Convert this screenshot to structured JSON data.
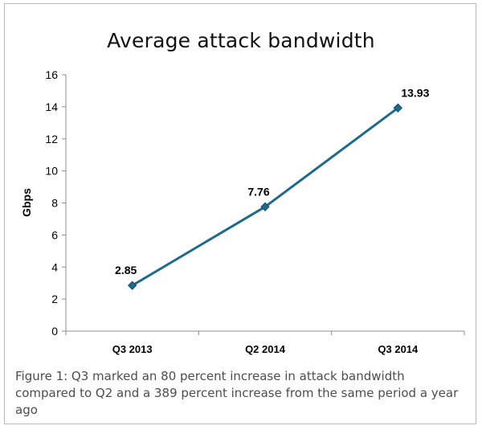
{
  "chart_data": {
    "type": "line",
    "title": "Average attack bandwidth",
    "xlabel": "",
    "ylabel": "Gbps",
    "categories": [
      "Q3 2013",
      "Q2 2014",
      "Q3 2014"
    ],
    "series": [
      {
        "values": [
          2.85,
          7.76,
          13.93
        ],
        "data_labels": [
          "2.85",
          "7.76",
          "13.93"
        ]
      }
    ],
    "ylim": [
      0,
      16
    ],
    "yticks": [
      0,
      2,
      4,
      6,
      8,
      10,
      12,
      14,
      16
    ],
    "grid": false,
    "legend": "none",
    "line_color": "#1f6a8a",
    "marker_color": "#1f6a8a"
  },
  "caption": "Figure 1: Q3 marked an 80 percent increase in attack bandwidth compared to Q2 and a 389 percent increase from the same period a year ago"
}
